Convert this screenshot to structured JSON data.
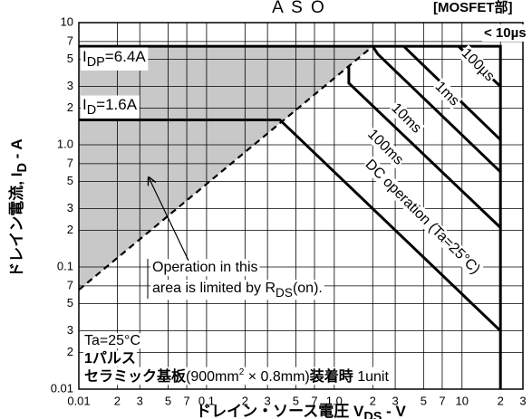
{
  "chart_data": {
    "type": "line",
    "title": "A S O",
    "subtitle": "[MOSFET部]",
    "y_label": {
      "text": "ドレイン電流, I",
      "sub": "D",
      "rest": " - A"
    },
    "x_label": {
      "text": "ドレイン・ソース電圧 V",
      "sub": "DS",
      "rest": " - V"
    },
    "log_x": true,
    "log_y": true,
    "grid": true,
    "xlim": [
      0.01,
      30
    ],
    "ylim": [
      0.01,
      10
    ],
    "xticks": [
      0.01,
      {
        "value": 0.02,
        "label": "2"
      },
      {
        "value": 0.03,
        "label": "3"
      },
      {
        "value": 0.05,
        "label": "5"
      },
      {
        "value": 0.07,
        "label": "7"
      },
      0.1,
      {
        "value": 0.2,
        "label": "2"
      },
      {
        "value": 0.3,
        "label": "3"
      },
      {
        "value": 0.5,
        "label": "5"
      },
      {
        "value": 0.7,
        "label": "7"
      },
      {
        "value": 1,
        "label": "1.0"
      },
      {
        "value": 2,
        "label": "2"
      },
      {
        "value": 3,
        "label": "3"
      },
      {
        "value": 5,
        "label": "5"
      },
      {
        "value": 7,
        "label": "7"
      },
      10,
      {
        "value": 20,
        "label": "2"
      },
      {
        "value": 30,
        "label": "3"
      }
    ],
    "yticks": [
      0.01,
      {
        "value": 0.02,
        "label": "2"
      },
      {
        "value": 0.03,
        "label": "3"
      },
      {
        "value": 0.05,
        "label": "5"
      },
      {
        "value": 0.07,
        "label": "7"
      },
      0.1,
      {
        "value": 0.2,
        "label": "2"
      },
      {
        "value": 0.3,
        "label": "3"
      },
      {
        "value": 0.5,
        "label": "5"
      },
      {
        "value": 0.7,
        "label": "7"
      },
      {
        "value": 1,
        "label": "1.0"
      },
      {
        "value": 2,
        "label": "2"
      },
      {
        "value": 3,
        "label": "3"
      },
      {
        "value": 5,
        "label": "5"
      },
      {
        "value": 7,
        "label": "7"
      },
      10
    ],
    "series": [
      {
        "name": "100µs",
        "color": "#000000",
        "x": [
          9.4,
          20
        ],
        "values": [
          6.4,
          3.0
        ]
      },
      {
        "name": "1ms",
        "color": "#000000",
        "x": [
          3.5,
          20
        ],
        "values": [
          6.4,
          1.1
        ]
      },
      {
        "name": "10ms",
        "color": "#000000",
        "x": [
          2.0,
          2.2,
          20
        ],
        "values": [
          6.4,
          5.5,
          0.6
        ]
      },
      {
        "name": "100ms",
        "color": "#000000",
        "x": [
          1.3,
          1.3,
          20
        ],
        "values": [
          4.4,
          3.2,
          0.21
        ]
      },
      {
        "name": "DC operation (Ta=25°C)",
        "color": "#000000",
        "x": [
          0.01,
          0.375,
          20
        ],
        "values": [
          1.6,
          1.6,
          0.03
        ]
      },
      {
        "color": "#000000",
        "x": [
          0.01,
          20,
          20
        ],
        "values": [
          6.4,
          6.4,
          0.01
        ]
      },
      {
        "color": "#000000",
        "dashed": true,
        "x": [
          0.01,
          2.0
        ],
        "values": [
          0.065,
          6.4
        ]
      }
    ],
    "shade_color": "#c8c8c8",
    "annotations": {
      "idp": {
        "text": "I",
        "sub": "DP",
        "rest": "=6.4A"
      },
      "id": {
        "text": "I",
        "sub": "D",
        "rest": "=1.6A"
      },
      "pulse_region": "< 10µs",
      "note1": "Operation in this",
      "note2": {
        "text": "area is limited by R",
        "sub": "DS",
        "rest": "(on)."
      },
      "ta": "Ta=25°C",
      "pulse": "1パルス",
      "board": [
        "セラミック基板",
        "(900mm",
        "2",
        " × 0.8mm)",
        "装着時",
        " 1unit"
      ]
    }
  }
}
